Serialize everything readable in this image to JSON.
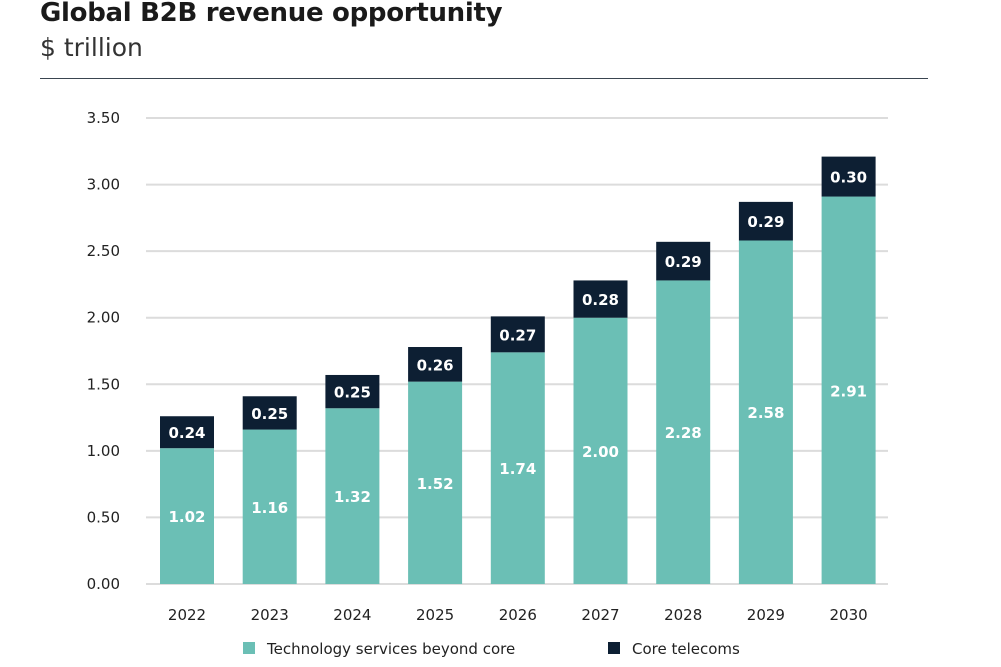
{
  "chart_data": {
    "type": "bar",
    "stacked": true,
    "title": "Global B2B revenue opportunity",
    "subtitle": "$ trillion",
    "categories": [
      "2022",
      "2023",
      "2024",
      "2025",
      "2026",
      "2027",
      "2028",
      "2029",
      "2030"
    ],
    "series": [
      {
        "name": "Technology services beyond core",
        "color": "#6bbfb5",
        "values": [
          1.02,
          1.16,
          1.32,
          1.52,
          1.74,
          2.0,
          2.28,
          2.58,
          2.91
        ]
      },
      {
        "name": "Core telecoms",
        "color": "#0d1f33",
        "values": [
          0.24,
          0.25,
          0.25,
          0.26,
          0.27,
          0.28,
          0.29,
          0.29,
          0.3
        ]
      }
    ],
    "ylim": [
      0,
      3.5
    ],
    "yticks": [
      "0.00",
      "0.50",
      "1.00",
      "1.50",
      "2.00",
      "2.50",
      "3.00",
      "3.50"
    ],
    "grid": true,
    "legend": "bottom"
  }
}
